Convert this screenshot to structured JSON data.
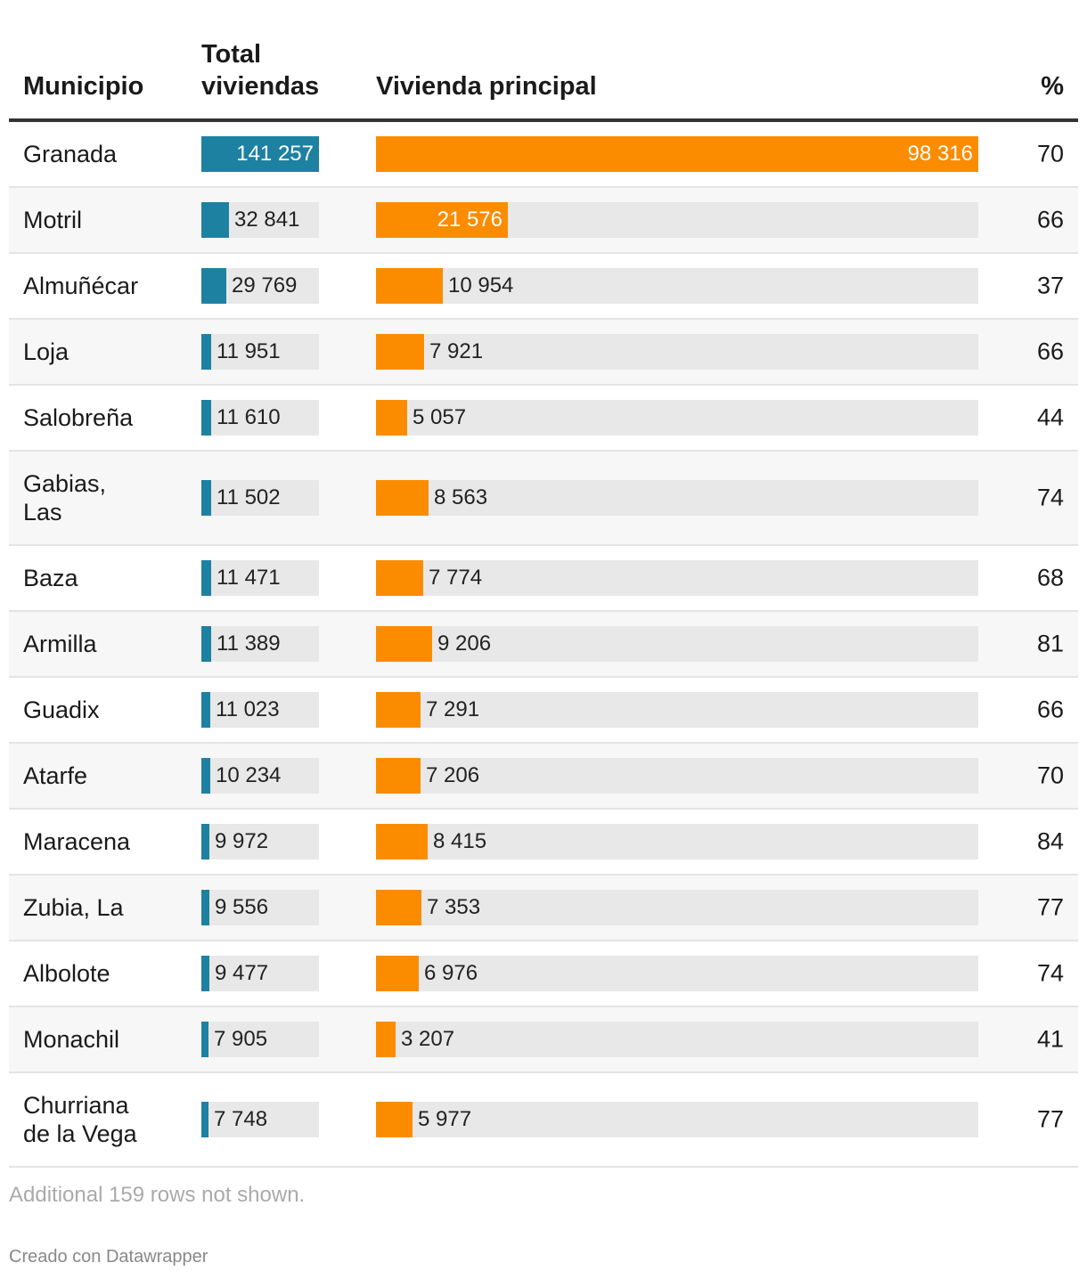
{
  "columns": {
    "municipio": "Municipio",
    "total": "Total viviendas",
    "vivienda": "Vivienda principal",
    "pct": "%"
  },
  "chart_data": {
    "type": "table",
    "columns": [
      "Municipio",
      "Total viviendas",
      "Vivienda principal",
      "%"
    ],
    "total_max": 141257,
    "vivienda_max": 98316,
    "colors": {
      "total_bar": "#1d81a2",
      "vivienda_bar": "#fb8c00",
      "track": "#e8e8e8"
    },
    "rows": [
      {
        "municipio": "Granada",
        "total": 141257,
        "total_label": "141 257",
        "vivienda": 98316,
        "vivienda_label": "98 316",
        "pct": "70"
      },
      {
        "municipio": "Motril",
        "total": 32841,
        "total_label": "32 841",
        "vivienda": 21576,
        "vivienda_label": "21 576",
        "pct": "66"
      },
      {
        "municipio": "Almuñécar",
        "total": 29769,
        "total_label": "29 769",
        "vivienda": 10954,
        "vivienda_label": "10 954",
        "pct": "37"
      },
      {
        "municipio": "Loja",
        "total": 11951,
        "total_label": "11 951",
        "vivienda": 7921,
        "vivienda_label": "7 921",
        "pct": "66"
      },
      {
        "municipio": "Salobreña",
        "total": 11610,
        "total_label": "11 610",
        "vivienda": 5057,
        "vivienda_label": "5 057",
        "pct": "44"
      },
      {
        "municipio": "Gabias, Las",
        "total": 11502,
        "total_label": "11 502",
        "vivienda": 8563,
        "vivienda_label": "8 563",
        "pct": "74"
      },
      {
        "municipio": "Baza",
        "total": 11471,
        "total_label": "11 471",
        "vivienda": 7774,
        "vivienda_label": "7 774",
        "pct": "68"
      },
      {
        "municipio": "Armilla",
        "total": 11389,
        "total_label": "11 389",
        "vivienda": 9206,
        "vivienda_label": "9 206",
        "pct": "81"
      },
      {
        "municipio": "Guadix",
        "total": 11023,
        "total_label": "11 023",
        "vivienda": 7291,
        "vivienda_label": "7 291",
        "pct": "66"
      },
      {
        "municipio": "Atarfe",
        "total": 10234,
        "total_label": "10 234",
        "vivienda": 7206,
        "vivienda_label": "7 206",
        "pct": "70"
      },
      {
        "municipio": "Maracena",
        "total": 9972,
        "total_label": "9 972",
        "vivienda": 8415,
        "vivienda_label": "8 415",
        "pct": "84"
      },
      {
        "municipio": "Zubia, La",
        "total": 9556,
        "total_label": "9 556",
        "vivienda": 7353,
        "vivienda_label": "7 353",
        "pct": "77"
      },
      {
        "municipio": "Albolote",
        "total": 9477,
        "total_label": "9 477",
        "vivienda": 6976,
        "vivienda_label": "6 976",
        "pct": "74"
      },
      {
        "municipio": "Monachil",
        "total": 7905,
        "total_label": "7 905",
        "vivienda": 3207,
        "vivienda_label": "3 207",
        "pct": "41"
      },
      {
        "municipio": "Churriana de la Vega",
        "total": 7748,
        "total_label": "7 748",
        "vivienda": 5977,
        "vivienda_label": "5 977",
        "pct": "77"
      }
    ]
  },
  "notes": "Additional 159 rows not shown.",
  "credit": "Creado con Datawrapper"
}
